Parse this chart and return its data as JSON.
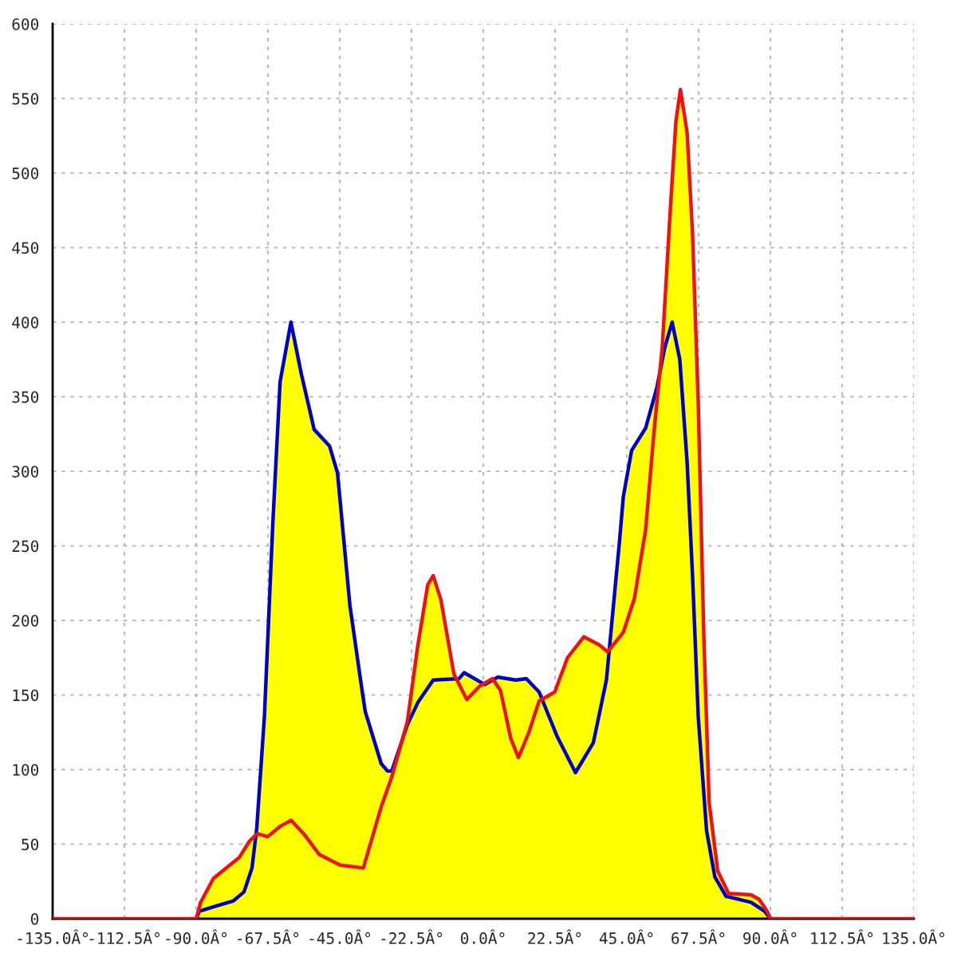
{
  "chart_data": {
    "type": "line",
    "series": [
      {
        "type": "area",
        "color": "#ffff00",
        "x": [
          -90,
          -88.6,
          -84.6,
          -80.6,
          -76.5,
          -73.3,
          -71.3,
          -71,
          -68.6,
          -66,
          -63.7,
          -60.3,
          -57,
          -53,
          -48.2,
          -45.7,
          -41.8,
          -38.4,
          -37,
          -32,
          -30,
          -28.7,
          -25.4,
          -23.8,
          -20.6,
          -17.4,
          -15.7,
          -13.3,
          -9.2,
          -8.5,
          -7.6,
          -6,
          0.1,
          2.9,
          3.1,
          4.5,
          10.2,
          13.5,
          17.5,
          18.4,
          22.4,
          26.4,
          31.5,
          36.1,
          39,
          39.5,
          42.7,
          43.9,
          46.5,
          50.9,
          54.4,
          55.3,
          56.1,
          58.7,
          60.4,
          61.8,
          63.9,
          65.6,
          67.4,
          69.1,
          70.8,
          73.5,
          76.9,
          83.9,
          86.5,
          89,
          90
        ],
        "values": [
          0,
          11,
          27,
          34,
          41,
          52,
          56,
          61,
          136,
          264,
          360,
          400,
          365,
          328,
          317,
          299,
          210,
          159,
          139,
          104,
          99,
          99,
          120,
          132,
          182,
          224,
          230,
          214,
          164,
          163,
          161,
          165,
          158,
          161,
          161,
          162,
          160,
          161,
          152,
          147,
          152,
          175,
          189,
          184,
          179,
          180,
          253,
          283,
          314,
          329,
          356,
          366,
          383,
          478,
          535,
          556,
          527,
          459,
          345,
          192,
          78,
          32,
          17,
          16,
          13,
          5,
          0
        ]
      },
      {
        "color": "#0000cc",
        "x": [
          -90,
          -89,
          -84.6,
          -78.3,
          -75,
          -72.5,
          -71,
          -68.6,
          -66,
          -63.7,
          -60.3,
          -57,
          -53,
          -48.2,
          -45.7,
          -41.8,
          -38.4,
          -37,
          -32,
          -30,
          -28.7,
          -23.8,
          -20.5,
          -15.7,
          -7.6,
          -6,
          0.5,
          4.5,
          10.2,
          13.5,
          17.5,
          23.2,
          28.9,
          34.5,
          38.6,
          42.7,
          43.9,
          46.5,
          50.9,
          54.4,
          56.9,
          59.2,
          61.6,
          63.9,
          65.6,
          67.4,
          70,
          72.6,
          76.1,
          83.9,
          88.2,
          90
        ],
        "values": [
          0,
          5,
          8,
          12,
          18,
          34,
          61,
          136,
          264,
          360,
          400,
          365,
          328,
          317,
          299,
          210,
          159,
          139,
          104,
          99,
          99,
          130,
          145,
          160,
          161,
          165,
          157,
          162,
          160,
          161,
          152,
          122,
          98,
          118,
          160,
          253,
          283,
          314,
          329,
          356,
          383,
          400,
          375,
          306,
          230,
          135,
          59,
          28,
          15,
          11,
          5,
          0
        ]
      },
      {
        "color": "#ee1111",
        "x": [
          -135,
          -90,
          -88.6,
          -84.6,
          -80.6,
          -76.5,
          -73.3,
          -70.9,
          -67.6,
          -63.6,
          -60.3,
          -56.3,
          -51.4,
          -44.9,
          -37.6,
          -32,
          -28.7,
          -23.8,
          -20.6,
          -17.4,
          -15.7,
          -13.3,
          -9.2,
          -5.2,
          -1.1,
          2.9,
          5.4,
          8.6,
          11,
          14.3,
          17.5,
          22.4,
          26.4,
          31.5,
          36.1,
          39,
          43.9,
          47.4,
          50.9,
          53.5,
          56.1,
          58.7,
          60.4,
          61.8,
          63.9,
          65.6,
          67.4,
          69.1,
          70.8,
          73.5,
          76.9,
          83.9,
          86.5,
          89,
          90,
          135
        ],
        "values": [
          0,
          0,
          11,
          27,
          34,
          41,
          52,
          57,
          55,
          62,
          66,
          57,
          43,
          36,
          34,
          75,
          95,
          132,
          182,
          224,
          230,
          214,
          164,
          147,
          156,
          161,
          153,
          121,
          108,
          125,
          146,
          152,
          175,
          189,
          184,
          179,
          192,
          215,
          261,
          326,
          383,
          478,
          535,
          556,
          527,
          459,
          345,
          192,
          78,
          32,
          17,
          16,
          13,
          5,
          0,
          0
        ]
      }
    ],
    "xlim": [
      -135,
      135
    ],
    "ylim": [
      0,
      600
    ],
    "xticks": [
      {
        "value": -135,
        "label": "-135.0Â°"
      },
      {
        "value": -112.5,
        "label": "-112.5Â°"
      },
      {
        "value": -90,
        "label": "-90.0Â°"
      },
      {
        "value": -67.5,
        "label": "-67.5Â°"
      },
      {
        "value": -45,
        "label": "-45.0Â°"
      },
      {
        "value": -22.5,
        "label": "-22.5Â°"
      },
      {
        "value": 0,
        "label": "0.0Â°"
      },
      {
        "value": 22.5,
        "label": "22.5Â°"
      },
      {
        "value": 45,
        "label": "45.0Â°"
      },
      {
        "value": 67.5,
        "label": "67.5Â°"
      },
      {
        "value": 90,
        "label": "90.0Â°"
      },
      {
        "value": 112.5,
        "label": "112.5Â°"
      },
      {
        "value": 135,
        "label": "135.0Â°"
      }
    ],
    "yticks": [
      0,
      50,
      100,
      150,
      200,
      250,
      300,
      350,
      400,
      450,
      500,
      550,
      600
    ],
    "grid": true
  }
}
